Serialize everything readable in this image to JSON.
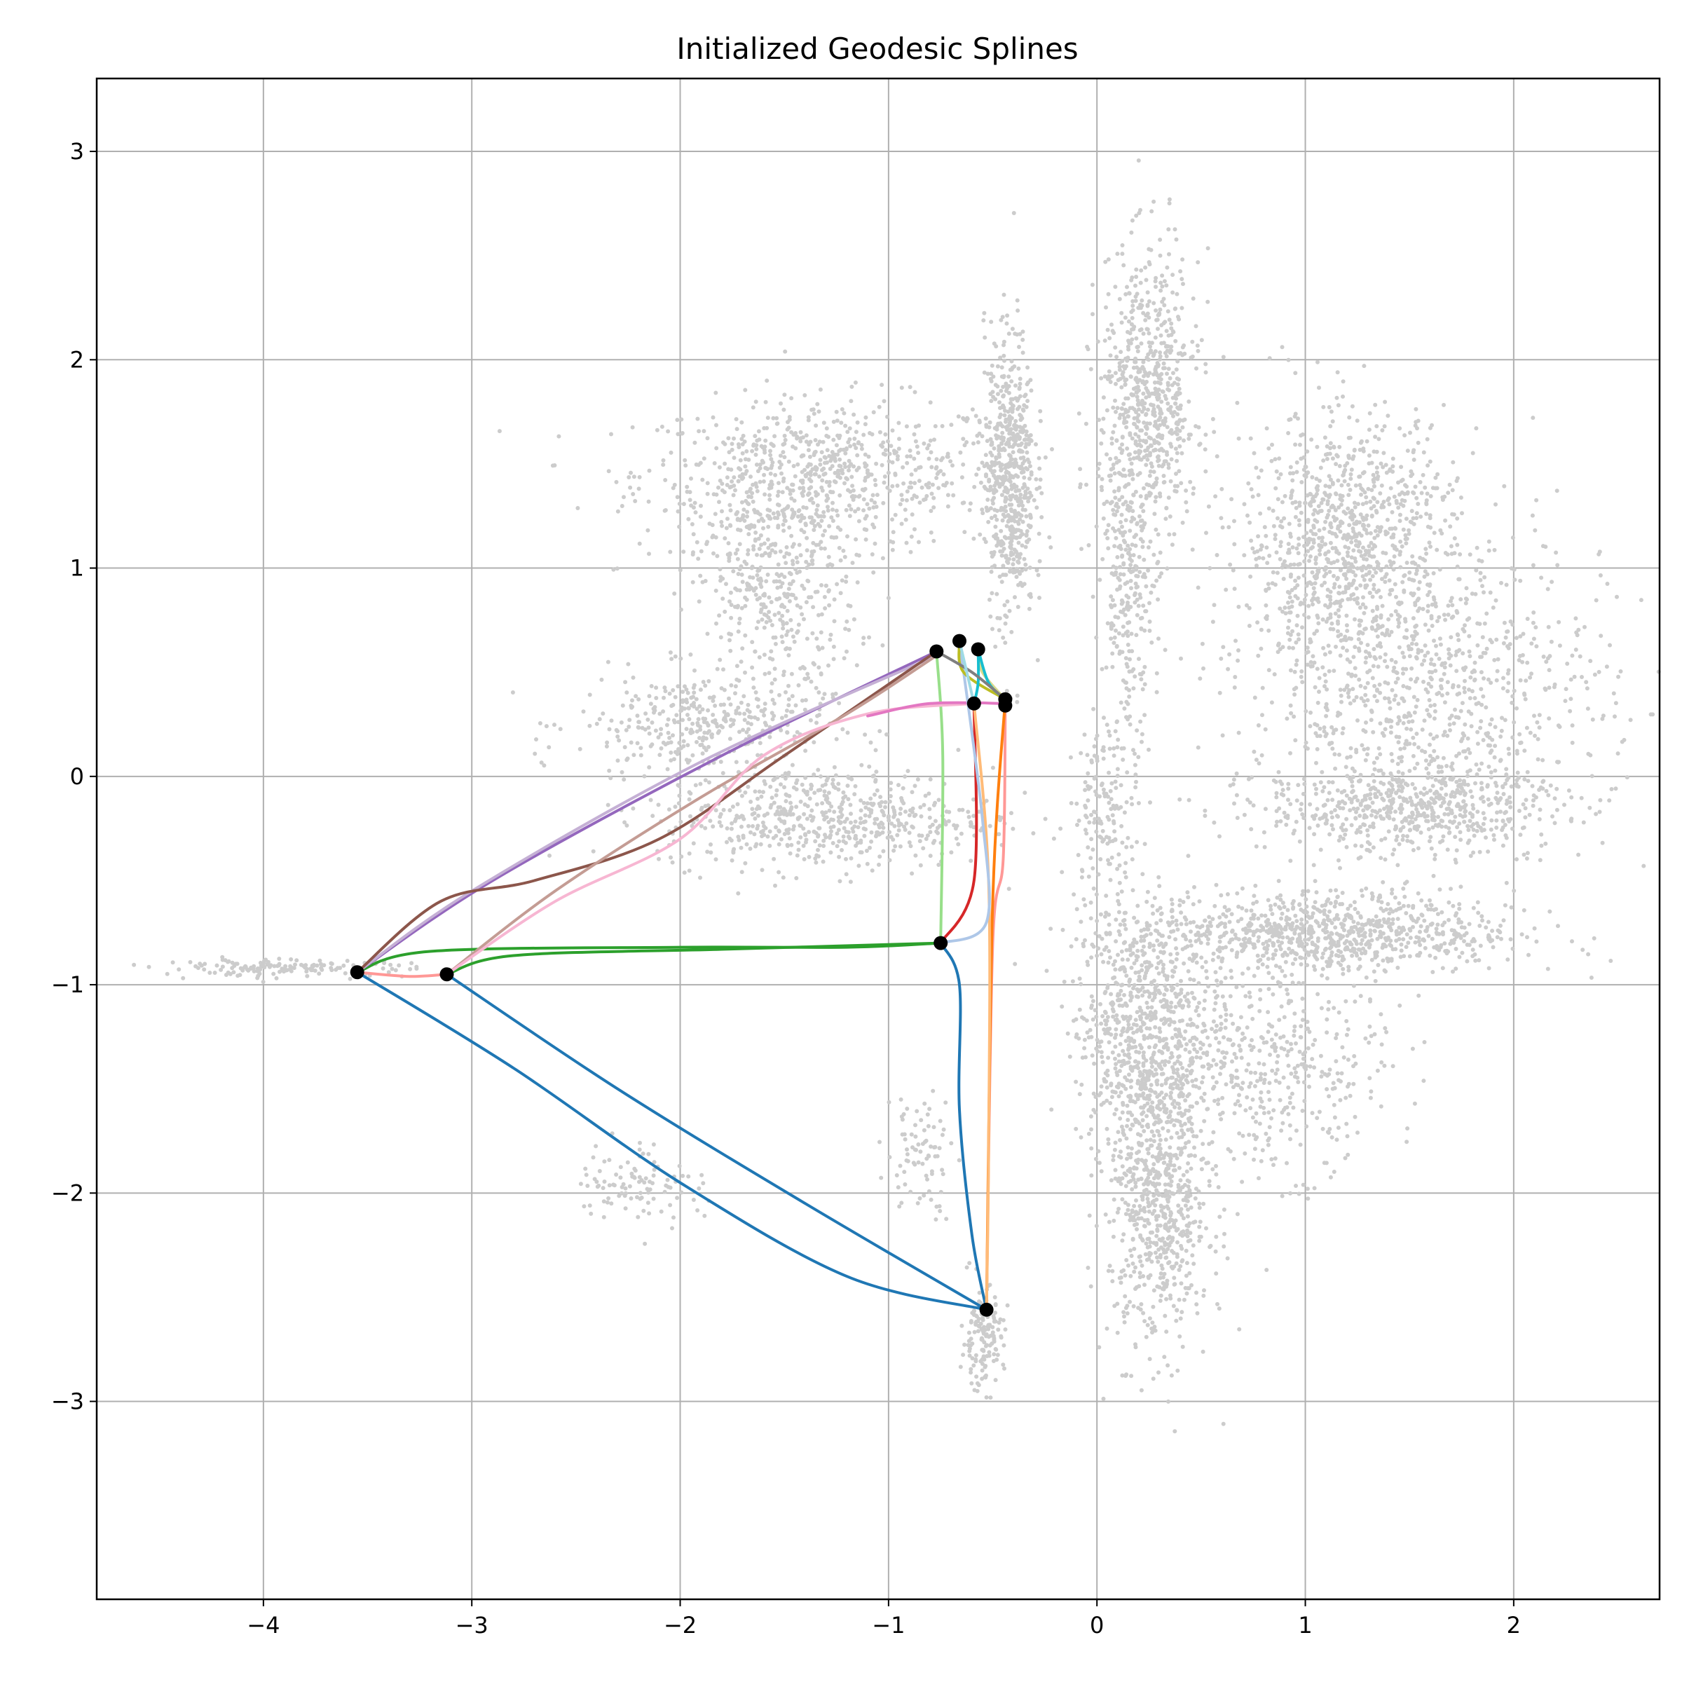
{
  "chart_data": {
    "type": "scatter",
    "title": "Initialized Geodesic Splines",
    "xlabel": "",
    "ylabel": "",
    "xlim": [
      -4.8,
      2.7
    ],
    "ylim": [
      -3.95,
      3.35
    ],
    "xticks": [
      -4,
      -3,
      -2,
      -1,
      0,
      1,
      2
    ],
    "yticks": [
      -3,
      -2,
      -1,
      0,
      1,
      2,
      3
    ],
    "xtick_labels": [
      "−4",
      "−3",
      "−2",
      "−1",
      "0",
      "1",
      "2"
    ],
    "ytick_labels": [
      "−3",
      "−2",
      "−1",
      "0",
      "1",
      "2",
      "3"
    ],
    "grid": true,
    "background_color": "#cccccc",
    "background_clusters": [
      {
        "cx": -1.3,
        "cy": 1.45,
        "sx": 0.45,
        "sy": 0.18,
        "n": 700
      },
      {
        "cx": -1.55,
        "cy": 0.95,
        "sx": 0.2,
        "sy": 0.3,
        "n": 500
      },
      {
        "cx": -1.9,
        "cy": 0.25,
        "sx": 0.3,
        "sy": 0.12,
        "n": 350
      },
      {
        "cx": -1.3,
        "cy": -0.2,
        "sx": 0.4,
        "sy": 0.12,
        "n": 600
      },
      {
        "cx": -0.42,
        "cy": 1.45,
        "sx": 0.06,
        "sy": 0.35,
        "n": 600
      },
      {
        "cx": 0.25,
        "cy": 1.8,
        "sx": 0.12,
        "sy": 0.35,
        "n": 700
      },
      {
        "cx": 0.15,
        "cy": 0.9,
        "sx": 0.06,
        "sy": 0.35,
        "n": 250
      },
      {
        "cx": 0.05,
        "cy": -0.15,
        "sx": 0.08,
        "sy": 0.2,
        "n": 150
      },
      {
        "cx": 1.2,
        "cy": 1.15,
        "sx": 0.25,
        "sy": 0.3,
        "n": 900
      },
      {
        "cx": 1.55,
        "cy": 0.4,
        "sx": 0.45,
        "sy": 0.4,
        "n": 1000
      },
      {
        "cx": 1.5,
        "cy": -0.15,
        "sx": 0.35,
        "sy": 0.1,
        "n": 500
      },
      {
        "cx": 1.1,
        "cy": -0.75,
        "sx": 0.45,
        "sy": 0.1,
        "n": 900
      },
      {
        "cx": 0.2,
        "cy": -1.2,
        "sx": 0.15,
        "sy": 0.3,
        "n": 700
      },
      {
        "cx": 0.3,
        "cy": -2.05,
        "sx": 0.12,
        "sy": 0.35,
        "n": 700
      },
      {
        "cx": 0.8,
        "cy": -1.4,
        "sx": 0.3,
        "sy": 0.25,
        "n": 500
      },
      {
        "cx": -2.2,
        "cy": -1.95,
        "sx": 0.15,
        "sy": 0.1,
        "n": 100
      },
      {
        "cx": -0.85,
        "cy": -1.8,
        "sx": 0.08,
        "sy": 0.15,
        "n": 80
      },
      {
        "cx": -0.55,
        "cy": -2.7,
        "sx": 0.05,
        "sy": 0.12,
        "n": 150
      },
      {
        "cx": -3.9,
        "cy": -0.92,
        "sx": 0.3,
        "sy": 0.02,
        "n": 150
      }
    ],
    "nodes": [
      {
        "x": -3.55,
        "y": -0.94
      },
      {
        "x": -3.12,
        "y": -0.95
      },
      {
        "x": -0.75,
        "y": -0.8
      },
      {
        "x": -0.53,
        "y": -2.56
      },
      {
        "x": -0.77,
        "y": 0.6
      },
      {
        "x": -0.66,
        "y": 0.65
      },
      {
        "x": -0.57,
        "y": 0.61
      },
      {
        "x": -0.59,
        "y": 0.35
      },
      {
        "x": -0.44,
        "y": 0.37
      },
      {
        "x": -0.44,
        "y": 0.34
      }
    ],
    "splines": [
      {
        "color": "#1f77b4",
        "points": [
          [
            -3.55,
            -0.94
          ],
          [
            -2.8,
            -1.4
          ],
          [
            -2.0,
            -1.95
          ],
          [
            -1.2,
            -2.4
          ],
          [
            -0.53,
            -2.56
          ]
        ]
      },
      {
        "color": "#1f77b4",
        "points": [
          [
            -3.12,
            -0.95
          ],
          [
            -2.3,
            -1.5
          ],
          [
            -1.4,
            -2.05
          ],
          [
            -0.53,
            -2.56
          ]
        ]
      },
      {
        "color": "#1f77b4",
        "points": [
          [
            -0.75,
            -0.8
          ],
          [
            -0.66,
            -1.0
          ],
          [
            -0.66,
            -1.6
          ],
          [
            -0.6,
            -2.2
          ],
          [
            -0.53,
            -2.56
          ]
        ]
      },
      {
        "color": "#2ca02c",
        "points": [
          [
            -3.55,
            -0.94
          ],
          [
            -3.2,
            -0.84
          ],
          [
            -2.0,
            -0.82
          ],
          [
            -1.2,
            -0.82
          ],
          [
            -0.75,
            -0.8
          ]
        ]
      },
      {
        "color": "#2ca02c",
        "points": [
          [
            -3.12,
            -0.95
          ],
          [
            -2.8,
            -0.86
          ],
          [
            -1.8,
            -0.83
          ],
          [
            -0.75,
            -0.8
          ]
        ]
      },
      {
        "color": "#98df8a",
        "points": [
          [
            -0.77,
            0.6
          ],
          [
            -0.74,
            0.1
          ],
          [
            -0.75,
            -0.8
          ]
        ]
      },
      {
        "color": "#9467bd",
        "points": [
          [
            -3.55,
            -0.94
          ],
          [
            -2.9,
            -0.5
          ],
          [
            -1.8,
            0.1
          ],
          [
            -0.77,
            0.6
          ]
        ]
      },
      {
        "color": "#c5b0d5",
        "points": [
          [
            -3.55,
            -0.94
          ],
          [
            -3.0,
            -0.55
          ],
          [
            -1.9,
            0.07
          ],
          [
            -0.77,
            0.58
          ]
        ]
      },
      {
        "color": "#8c564b",
        "points": [
          [
            -3.55,
            -0.94
          ],
          [
            -3.15,
            -0.6
          ],
          [
            -2.7,
            -0.5
          ],
          [
            -2.1,
            -0.3
          ],
          [
            -1.5,
            0.1
          ],
          [
            -0.77,
            0.6
          ]
        ]
      },
      {
        "color": "#c49c94",
        "points": [
          [
            -3.12,
            -0.95
          ],
          [
            -2.6,
            -0.55
          ],
          [
            -1.9,
            -0.1
          ],
          [
            -1.2,
            0.3
          ],
          [
            -0.77,
            0.58
          ]
        ]
      },
      {
        "color": "#f7b6d2",
        "points": [
          [
            -3.12,
            -0.95
          ],
          [
            -2.6,
            -0.6
          ],
          [
            -2.0,
            -0.3
          ],
          [
            -1.6,
            0.1
          ],
          [
            -1.1,
            0.3
          ],
          [
            -0.59,
            0.35
          ]
        ]
      },
      {
        "color": "#e377c2",
        "points": [
          [
            -1.1,
            0.29
          ],
          [
            -0.8,
            0.35
          ],
          [
            -0.44,
            0.35
          ]
        ]
      },
      {
        "color": "#ff9896",
        "points": [
          [
            -3.55,
            -0.94
          ],
          [
            -3.3,
            -0.96
          ],
          [
            -3.12,
            -0.95
          ]
        ]
      },
      {
        "color": "#ff9896",
        "points": [
          [
            -0.44,
            0.34
          ],
          [
            -0.45,
            -0.4
          ],
          [
            -0.5,
            -0.8
          ],
          [
            -0.53,
            -2.56
          ]
        ]
      },
      {
        "color": "#d62728",
        "points": [
          [
            -0.59,
            0.35
          ],
          [
            -0.59,
            -0.5
          ],
          [
            -0.75,
            -0.8
          ]
        ]
      },
      {
        "color": "#ff7f0e",
        "points": [
          [
            -0.44,
            0.37
          ],
          [
            -0.5,
            -0.6
          ],
          [
            -0.53,
            -2.56
          ]
        ]
      },
      {
        "color": "#ffbb78",
        "points": [
          [
            -0.59,
            0.35
          ],
          [
            -0.52,
            -0.5
          ],
          [
            -0.52,
            -1.8
          ],
          [
            -0.53,
            -2.56
          ]
        ]
      },
      {
        "color": "#aec7e8",
        "points": [
          [
            -0.66,
            0.65
          ],
          [
            -0.55,
            -0.2
          ],
          [
            -0.53,
            -0.7
          ],
          [
            -0.75,
            -0.8
          ]
        ]
      },
      {
        "color": "#bcbd22",
        "points": [
          [
            -0.66,
            0.65
          ],
          [
            -0.64,
            0.5
          ],
          [
            -0.44,
            0.37
          ]
        ]
      },
      {
        "color": "#dbdb8d",
        "points": [
          [
            -0.57,
            0.61
          ],
          [
            -0.55,
            0.5
          ],
          [
            -0.44,
            0.37
          ]
        ]
      },
      {
        "color": "#17becf",
        "points": [
          [
            -0.57,
            0.61
          ],
          [
            -0.52,
            0.45
          ],
          [
            -0.44,
            0.37
          ]
        ]
      },
      {
        "color": "#17becf",
        "points": [
          [
            -0.57,
            0.61
          ],
          [
            -0.57,
            0.45
          ],
          [
            -0.59,
            0.35
          ]
        ]
      },
      {
        "color": "#7f7f7f",
        "points": [
          [
            -0.77,
            0.6
          ],
          [
            -0.6,
            0.5
          ],
          [
            -0.44,
            0.37
          ]
        ]
      },
      {
        "color": "#9edae5",
        "points": [
          [
            -0.66,
            0.65
          ],
          [
            -0.62,
            0.48
          ],
          [
            -0.59,
            0.35
          ]
        ]
      }
    ]
  }
}
